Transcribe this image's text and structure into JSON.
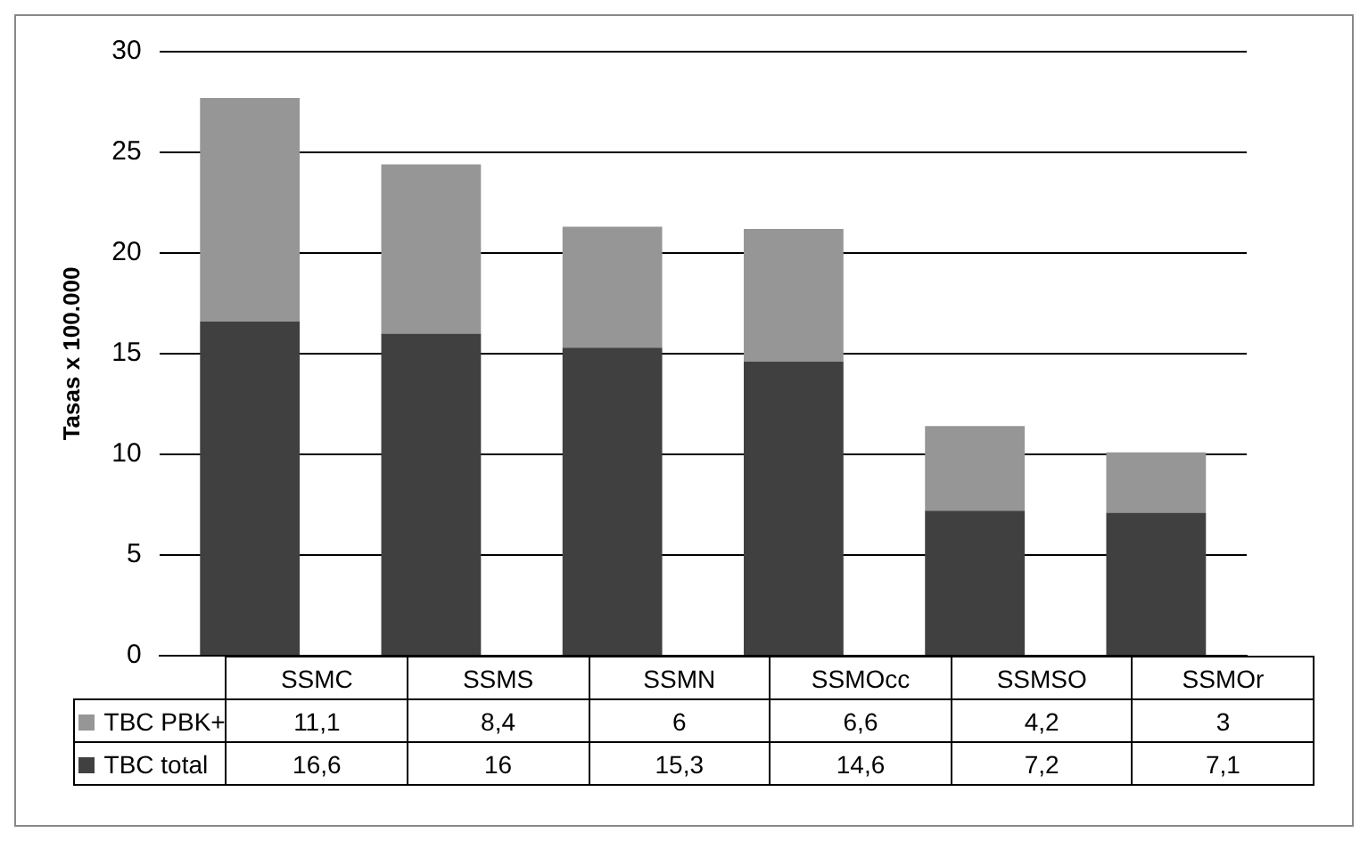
{
  "chart_data": {
    "type": "bar",
    "stacked": true,
    "ylabel": "Tasas x 100.000",
    "categories": [
      "SSMC",
      "SSMS",
      "SSMN",
      "SSMOcc",
      "SSMSO",
      "SSMOr"
    ],
    "series": [
      {
        "name": "TBC total",
        "color": "#404040",
        "values": [
          16.6,
          16,
          15.3,
          14.6,
          7.2,
          7.1
        ],
        "value_labels": [
          "16,6",
          "16",
          "15,3",
          "14,6",
          "7,2",
          "7,1"
        ]
      },
      {
        "name": "TBC PBK+",
        "color": "#969696",
        "values": [
          11.1,
          8.4,
          6,
          6.6,
          4.2,
          3
        ],
        "value_labels": [
          "11,1",
          "8,4",
          "6",
          "6,6",
          "4,2",
          "3"
        ]
      }
    ],
    "ylim": [
      0,
      30
    ],
    "yticks": [
      0,
      5,
      10,
      15,
      20,
      25,
      30
    ],
    "grid": "y",
    "legend": "bottom"
  }
}
